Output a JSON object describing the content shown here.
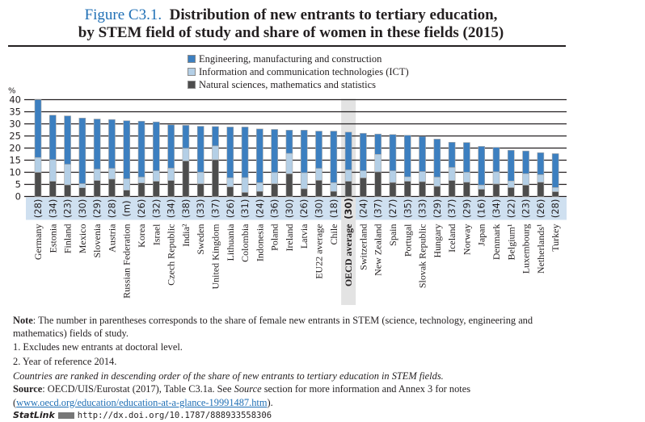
{
  "title": {
    "figure_label": "Figure C3.1.",
    "line1": "Distribution of new entrants to tertiary education,",
    "line2": "by STEM field of study and share of women in these fields (2015)"
  },
  "colors": {
    "engineering": "#3c7fc0",
    "ict": "#b4cfe6",
    "natural_sciences": "#4d4d4d",
    "label_band": "#cfe0f0",
    "highlight": "#e3e3e3",
    "title_accent": "#1f6fb5"
  },
  "chart_data": {
    "type": "bar",
    "stacked": true,
    "title": "Distribution of new entrants to tertiary education, by STEM field of study and share of women in these fields (2015)",
    "ylabel": "%",
    "xlabel": "",
    "ylim": [
      0,
      40
    ],
    "yticks": [
      0,
      5,
      10,
      15,
      20,
      25,
      30,
      35,
      40
    ],
    "grid": true,
    "legend_position": "top-center",
    "highlight_category": "OECD average",
    "categories": [
      "Germany",
      "Estonia",
      "Finland",
      "Mexico",
      "Slovenia",
      "Austria",
      "Russian Federation",
      "Korea",
      "Israel",
      "Czech Republic",
      "India²",
      "Sweden",
      "United Kingdom",
      "Lithuania",
      "Colombia",
      "Indonesia",
      "Poland",
      "Ireland",
      "Latvia",
      "EU22 average",
      "Chile",
      "OECD average",
      "Switzerland",
      "New Zealand",
      "Spain",
      "Portugal",
      "Slovak Republic",
      "Hungary",
      "Iceland",
      "Norway",
      "Japan",
      "Denmark",
      "Belgium¹",
      "Luxembourg",
      "Netherlands¹",
      "Turkey"
    ],
    "female_share_labels": [
      "(28)",
      "(34)",
      "(23)",
      "(30)",
      "(29)",
      "(28)",
      "(m)",
      "(26)",
      "(32)",
      "(34)",
      "(38)",
      "(33)",
      "(37)",
      "(26)",
      "(31)",
      "(24)",
      "(36)",
      "(30)",
      "(26)",
      "(30)",
      "(18)",
      "(30)",
      "(24)",
      "(37)",
      "(27)",
      "(35)",
      "(33)",
      "(29)",
      "(37)",
      "(29)",
      "(16)",
      "(34)",
      "(22)",
      "(23)",
      "(26)",
      "(28)"
    ],
    "series": [
      {
        "name": "Natural sciences, mathematics and statistics",
        "key": "natural_sciences",
        "values": [
          10.0,
          6.3,
          4.8,
          3.6,
          6.6,
          7.2,
          2.6,
          5.6,
          6.3,
          6.6,
          14.7,
          5.3,
          15.2,
          4.0,
          1.7,
          2.1,
          5.3,
          9.4,
          3.2,
          6.7,
          2.1,
          6.3,
          7.7,
          10.2,
          5.8,
          6.3,
          6.1,
          4.2,
          6.6,
          5.9,
          3.0,
          5.2,
          3.7,
          4.7,
          5.9,
          2.0
        ]
      },
      {
        "name": "Information and communication technologies (ICT)",
        "key": "ict",
        "values": [
          6.1,
          8.9,
          8.5,
          1.7,
          4.7,
          4.4,
          4.7,
          2.4,
          4.3,
          5.1,
          5.2,
          4.7,
          5.7,
          3.7,
          6.1,
          3.6,
          4.6,
          8.4,
          6.6,
          4.9,
          3.6,
          4.7,
          2.9,
          7.2,
          4.8,
          1.8,
          4.2,
          3.8,
          5.4,
          4.1,
          1.7,
          5.0,
          2.7,
          4.7,
          3.1,
          1.7
        ]
      },
      {
        "name": "Engineering, manufacturing and construction",
        "key": "engineering",
        "values": [
          23.9,
          18.4,
          20.0,
          27.1,
          20.7,
          20.2,
          24.0,
          23.1,
          20.2,
          17.9,
          9.5,
          19.0,
          8.0,
          21.0,
          20.9,
          22.2,
          17.8,
          9.6,
          17.6,
          15.4,
          21.3,
          15.6,
          15.5,
          8.4,
          15.0,
          17.2,
          14.5,
          15.7,
          10.4,
          12.3,
          16.0,
          10.1,
          12.7,
          9.4,
          9.1,
          14.0
        ]
      }
    ]
  },
  "legend": {
    "items": [
      {
        "label": "Engineering, manufacturing and construction",
        "key": "engineering"
      },
      {
        "label": "Information and communication technologies (ICT)",
        "key": "ict"
      },
      {
        "label": "Natural sciences, mathematics and statistics",
        "key": "natural_sciences"
      }
    ]
  },
  "notes": {
    "note_label": "Note",
    "note_text": ": The number in parentheses corresponds to the share of female new entrants in STEM (science, technology, engineering and mathematics) fields of study.",
    "footnote1": "1. Excludes new entrants at doctoral level.",
    "footnote2": "2. Year of reference 2014.",
    "ranking": "Countries are ranked in descending order of the share of new entrants to tertiary education in STEM fields.",
    "source_label": "Source",
    "source_text_a": ": OECD/UIS/Eurostat (2017), Table C3.1a. See ",
    "source_italic": "Source",
    "source_text_b": " section for more information and Annex 3 for notes (",
    "source_link": "www.oecd.org/education/education-at-a-glance-19991487.htm",
    "source_end": ").",
    "statlink_label": "StatLink",
    "statlink_url": "http://dx.doi.org/10.1787/888933558306"
  }
}
